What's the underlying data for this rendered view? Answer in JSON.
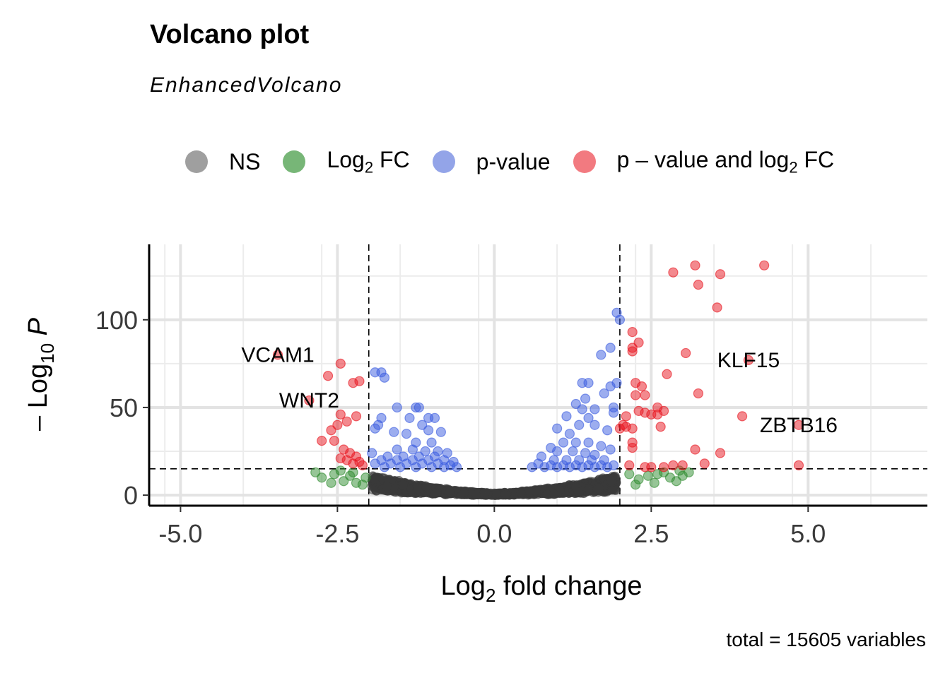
{
  "title": "Volcano plot",
  "subtitle": "EnhancedVolcano",
  "caption": "total = 15605 variables",
  "legend": [
    {
      "label_main": "NS",
      "label_sub": "",
      "label_tail": "",
      "color": "#7f7f7f"
    },
    {
      "label_main": "Log",
      "label_sub": "2",
      "label_tail": " FC",
      "color": "#4a9e4a"
    },
    {
      "label_main": "p-value",
      "label_sub": "",
      "label_tail": "",
      "color": "#6f86e0"
    },
    {
      "label_main": "p – value and log",
      "label_sub": "2",
      "label_tail": " FC",
      "color": "#ee4d56"
    }
  ],
  "axes": {
    "x_main": "Log",
    "x_sub": "2",
    "x_tail": " fold change",
    "y_main": "– Log",
    "y_sub": "10",
    "y_tail": " P"
  },
  "chart_data": {
    "type": "scatter",
    "xlim": [
      -5.5,
      6.9
    ],
    "ylim": [
      -6,
      143
    ],
    "x_ticks": [
      -5.0,
      -2.5,
      0.0,
      2.5,
      5.0
    ],
    "x_tick_labels": [
      "-5.0",
      "-2.5",
      "0.0",
      "2.5",
      "5.0"
    ],
    "y_ticks": [
      0,
      50,
      100
    ],
    "y_tick_labels": [
      "0",
      "50",
      "100"
    ],
    "grid": true,
    "legend_position": "top",
    "cutoffs": {
      "log2fc": [
        -2,
        2
      ],
      "neg_log10_p": 15
    },
    "colors": {
      "NS": "#3b3b3b",
      "Log2 FC": "#2e8b2e",
      "p-value": "#3a5be0",
      "p – value and log2 FC": "#e8141e"
    },
    "series": [
      {
        "name": "p – value and log2 FC",
        "points": [
          [
            4.3,
            131
          ],
          [
            3.2,
            131
          ],
          [
            2.85,
            127
          ],
          [
            3.6,
            126
          ],
          [
            3.25,
            120
          ],
          [
            3.55,
            107
          ],
          [
            2.2,
            93
          ],
          [
            2.3,
            87
          ],
          [
            2.2,
            84
          ],
          [
            2.2,
            82
          ],
          [
            3.05,
            81
          ],
          [
            4.05,
            77
          ],
          [
            2.75,
            69
          ],
          [
            2.25,
            64
          ],
          [
            2.35,
            62
          ],
          [
            3.25,
            58
          ],
          [
            2.25,
            57
          ],
          [
            2.4,
            57
          ],
          [
            2.6,
            50
          ],
          [
            2.7,
            48
          ],
          [
            2.3,
            48
          ],
          [
            2.4,
            47
          ],
          [
            2.5,
            46
          ],
          [
            2.6,
            46
          ],
          [
            3.95,
            45
          ],
          [
            2.1,
            45
          ],
          [
            2.05,
            40
          ],
          [
            2.0,
            38
          ],
          [
            2.1,
            39
          ],
          [
            2.2,
            38
          ],
          [
            2.65,
            39
          ],
          [
            4.85,
            40
          ],
          [
            2.2,
            30
          ],
          [
            2.2,
            27
          ],
          [
            3.2,
            26
          ],
          [
            3.6,
            24
          ],
          [
            2.15,
            17
          ],
          [
            2.4,
            16
          ],
          [
            2.5,
            16
          ],
          [
            2.7,
            16
          ],
          [
            2.85,
            17
          ],
          [
            3.0,
            17
          ],
          [
            3.35,
            18
          ],
          [
            4.85,
            17
          ],
          [
            -3.45,
            80
          ],
          [
            -2.45,
            75
          ],
          [
            -2.65,
            68
          ],
          [
            -2.25,
            64
          ],
          [
            -2.15,
            65
          ],
          [
            -2.95,
            54
          ],
          [
            -2.45,
            46
          ],
          [
            -2.2,
            45
          ],
          [
            -2.35,
            42
          ],
          [
            -2.5,
            40
          ],
          [
            -2.6,
            37
          ],
          [
            -2.75,
            31
          ],
          [
            -2.55,
            31
          ],
          [
            -2.4,
            26
          ],
          [
            -2.3,
            24
          ],
          [
            -2.2,
            22
          ],
          [
            -2.35,
            20
          ],
          [
            -2.15,
            19
          ],
          [
            -2.45,
            21
          ],
          [
            -2.25,
            18
          ],
          [
            -2.1,
            17
          ]
        ]
      },
      {
        "name": "p-value",
        "points": [
          [
            1.95,
            104
          ],
          [
            2.0,
            100
          ],
          [
            1.85,
            84
          ],
          [
            1.7,
            80
          ],
          [
            1.4,
            64
          ],
          [
            1.5,
            64
          ],
          [
            1.85,
            62
          ],
          [
            1.95,
            64
          ],
          [
            1.75,
            58
          ],
          [
            1.45,
            55
          ],
          [
            1.3,
            52
          ],
          [
            1.4,
            49
          ],
          [
            1.6,
            49
          ],
          [
            1.9,
            50
          ],
          [
            1.9,
            47
          ],
          [
            1.5,
            44
          ],
          [
            1.15,
            45
          ],
          [
            1.35,
            40
          ],
          [
            1.6,
            40
          ],
          [
            1.8,
            37
          ],
          [
            1.0,
            38
          ],
          [
            1.2,
            35
          ],
          [
            1.1,
            30
          ],
          [
            1.3,
            30
          ],
          [
            1.5,
            30
          ],
          [
            1.7,
            28
          ],
          [
            1.85,
            26
          ],
          [
            0.9,
            27
          ],
          [
            1.0,
            25
          ],
          [
            1.25,
            25
          ],
          [
            1.45,
            24
          ],
          [
            1.6,
            23
          ],
          [
            0.75,
            22
          ],
          [
            0.95,
            20
          ],
          [
            1.15,
            20
          ],
          [
            1.35,
            20
          ],
          [
            1.55,
            20
          ],
          [
            1.75,
            20
          ],
          [
            0.7,
            18
          ],
          [
            0.9,
            17
          ],
          [
            1.1,
            17
          ],
          [
            1.3,
            17
          ],
          [
            1.5,
            17
          ],
          [
            1.7,
            17
          ],
          [
            1.9,
            17
          ],
          [
            0.6,
            16
          ],
          [
            0.8,
            16
          ],
          [
            1.0,
            16
          ],
          [
            1.2,
            16
          ],
          [
            1.4,
            16
          ],
          [
            1.6,
            16
          ],
          [
            1.8,
            16
          ],
          [
            -1.9,
            70
          ],
          [
            -1.8,
            70
          ],
          [
            -1.75,
            67
          ],
          [
            -1.55,
            50
          ],
          [
            -1.25,
            50
          ],
          [
            -1.2,
            50
          ],
          [
            -1.8,
            44
          ],
          [
            -1.85,
            40
          ],
          [
            -1.9,
            38
          ],
          [
            -1.35,
            44
          ],
          [
            -1.05,
            44
          ],
          [
            -0.95,
            44
          ],
          [
            -1.15,
            40
          ],
          [
            -1.05,
            37
          ],
          [
            -0.85,
            36
          ],
          [
            -1.6,
            36
          ],
          [
            -1.4,
            35
          ],
          [
            -1.25,
            30
          ],
          [
            -1.0,
            30
          ],
          [
            -1.55,
            26
          ],
          [
            -1.3,
            26
          ],
          [
            -1.1,
            25
          ],
          [
            -0.9,
            25
          ],
          [
            -0.75,
            24
          ],
          [
            -1.95,
            24
          ],
          [
            -1.7,
            22
          ],
          [
            -1.45,
            22
          ],
          [
            -1.2,
            22
          ],
          [
            -0.95,
            22
          ],
          [
            -1.8,
            20
          ],
          [
            -1.55,
            20
          ],
          [
            -1.3,
            20
          ],
          [
            -1.05,
            20
          ],
          [
            -0.8,
            20
          ],
          [
            -0.65,
            19
          ],
          [
            -1.9,
            18
          ],
          [
            -1.65,
            18
          ],
          [
            -1.4,
            18
          ],
          [
            -1.15,
            18
          ],
          [
            -0.9,
            18
          ],
          [
            -0.7,
            17
          ],
          [
            -1.75,
            16
          ],
          [
            -1.5,
            16
          ],
          [
            -1.25,
            16
          ],
          [
            -1.0,
            16
          ],
          [
            -0.8,
            16
          ],
          [
            -0.6,
            16
          ]
        ]
      },
      {
        "name": "Log2 FC",
        "points": [
          [
            2.15,
            12
          ],
          [
            2.3,
            9
          ],
          [
            2.45,
            11
          ],
          [
            2.55,
            7
          ],
          [
            2.7,
            13
          ],
          [
            2.8,
            10
          ],
          [
            2.9,
            8
          ],
          [
            3.0,
            11
          ],
          [
            3.1,
            13
          ],
          [
            2.25,
            6
          ],
          [
            2.6,
            12
          ],
          [
            2.95,
            14
          ],
          [
            -2.85,
            13
          ],
          [
            -2.75,
            10
          ],
          [
            -2.55,
            12
          ],
          [
            -2.4,
            8
          ],
          [
            -2.3,
            11
          ],
          [
            -2.2,
            7
          ],
          [
            -2.1,
            6
          ],
          [
            -2.45,
            14
          ],
          [
            -2.25,
            13
          ],
          [
            -2.6,
            7
          ],
          [
            -2.05,
            10
          ]
        ]
      },
      {
        "name": "NS",
        "summary": "≈15,400 non-significant variables with |log2 FC| < 2 and −log10 P < 15, forming a V-shaped cloud centred at 0"
      }
    ],
    "labels": [
      {
        "text": "VCAM1",
        "x": -3.45,
        "y": 80
      },
      {
        "text": "WNT2",
        "x": -2.95,
        "y": 54
      },
      {
        "text": "KLF15",
        "x": 4.05,
        "y": 77
      },
      {
        "text": "ZBTB16",
        "x": 4.85,
        "y": 40
      }
    ]
  }
}
